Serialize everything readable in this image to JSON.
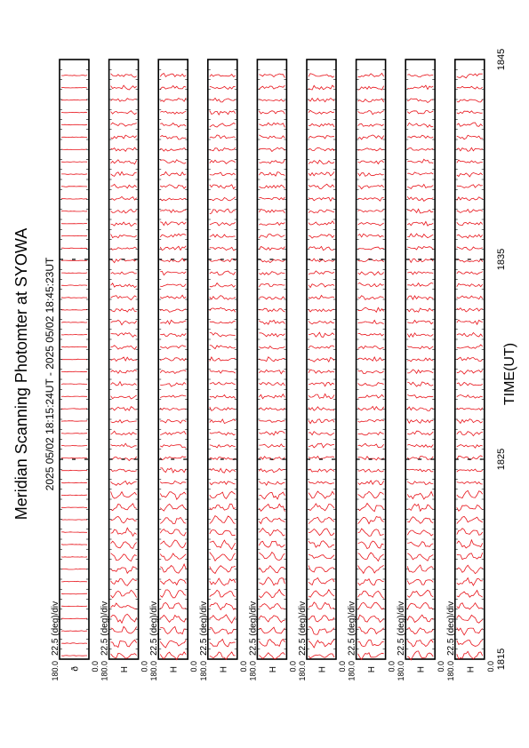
{
  "title": "Meridian Scanning Photomter at SYOWA",
  "time_range": "2025 05/02 18:15:24UT - 2025 05/02 18:45:23UT",
  "chart_data": {
    "type": "line",
    "xlabel": "TIME(UT)",
    "x_ticks": [
      "1815",
      "1825",
      "1835",
      "1845"
    ],
    "xlim": [
      1815,
      1845
    ],
    "y_scale_label": "22.5 (deg)/div",
    "y_top_label": "180.0",
    "y_bottom_label": "0.0",
    "panels": [
      {
        "channel": "ð"
      },
      {
        "channel": "H"
      },
      {
        "channel": "H"
      },
      {
        "channel": "H"
      },
      {
        "channel": "H"
      },
      {
        "channel": "H"
      },
      {
        "channel": "H"
      },
      {
        "channel": "H"
      },
      {
        "channel": "H"
      }
    ],
    "trace_color": "#e8141b"
  }
}
